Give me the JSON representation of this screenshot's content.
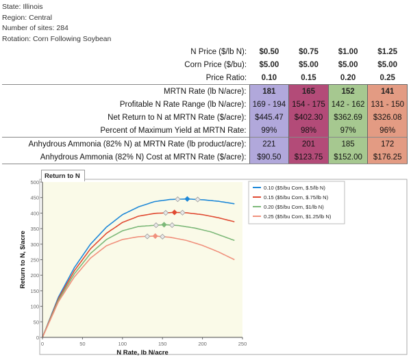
{
  "meta": {
    "state": "State: Illinois",
    "region": "Region: Central",
    "sites": "Number of sites: 284",
    "rotation": "Rotation: Corn Following Soybean"
  },
  "table": {
    "rows": [
      {
        "label": "N Price ($/lb N):",
        "values": [
          "$0.50",
          "$0.75",
          "$1.00",
          "$1.25"
        ]
      },
      {
        "label": "Corn Price ($/bu):",
        "values": [
          "$5.00",
          "$5.00",
          "$5.00",
          "$5.00"
        ]
      },
      {
        "label": "Price Ratio:",
        "values": [
          "0.10",
          "0.15",
          "0.20",
          "0.25"
        ]
      },
      {
        "label": "MRTN Rate (lb N/acre):",
        "values": [
          "181",
          "165",
          "152",
          "141"
        ]
      },
      {
        "label": "Profitable N Rate Range (lb N/acre):",
        "values": [
          "169 - 194",
          "154 - 175",
          "142 - 162",
          "131 - 150"
        ]
      },
      {
        "label": "Net Return to N at MRTN Rate ($/acre):",
        "values": [
          "$445.47",
          "$402.30",
          "$362.69",
          "$326.08"
        ]
      },
      {
        "label": "Percent of Maximum Yield at MRTN Rate:",
        "values": [
          "99%",
          "98%",
          "97%",
          "96%"
        ]
      },
      {
        "label": "Anhydrous Ammonia (82% N) at MRTN Rate (lb product/acre):",
        "values": [
          "221",
          "201",
          "185",
          "172"
        ]
      },
      {
        "label": "Anhydrous Ammonia (82% N) Cost at MRTN Rate ($/acre):",
        "values": [
          "$90.50",
          "$123.75",
          "$152.00",
          "$176.25"
        ]
      }
    ]
  },
  "chart_tab": "Return to N",
  "colors": {
    "s1": "#1e88d8",
    "s2": "#e04a32",
    "s3": "#7cb878",
    "s4": "#f0907c"
  },
  "chart_data": {
    "type": "line",
    "title": "",
    "xlabel": "N Rate, lb N/acre",
    "ylabel": "Return to N, $/acre",
    "xlim": [
      0,
      250
    ],
    "ylim": [
      0,
      500
    ],
    "xticks": [
      "0",
      "50",
      "100",
      "150",
      "200",
      "250"
    ],
    "yticks": [
      "0",
      "50",
      "100",
      "150",
      "200",
      "250",
      "300",
      "350",
      "400",
      "450",
      "500"
    ],
    "grid": false,
    "legend_position": "top-right",
    "series": [
      {
        "name": "0.10 ($5/bu Corn, $.5/lb N)",
        "color": "#1e88d8",
        "mrtn": 181,
        "max_return": 445.47,
        "range": [
          169,
          194
        ],
        "x": [
          0,
          20,
          40,
          60,
          80,
          100,
          120,
          140,
          160,
          181,
          200,
          220,
          240
        ],
        "y": [
          0,
          130,
          225,
          300,
          355,
          395,
          420,
          437,
          444,
          445.5,
          443,
          438,
          430
        ]
      },
      {
        "name": "0.15 ($5/bu Corn, $.75/lb N)",
        "color": "#e04a32",
        "mrtn": 165,
        "max_return": 402.3,
        "range": [
          154,
          175
        ],
        "x": [
          0,
          20,
          40,
          60,
          80,
          100,
          120,
          140,
          165,
          180,
          200,
          220,
          240
        ],
        "y": [
          0,
          125,
          215,
          285,
          335,
          370,
          390,
          399,
          402.3,
          401,
          395,
          385,
          372
        ]
      },
      {
        "name": "0.20 ($5/bu Corn, $1/lb N)",
        "color": "#7cb878",
        "mrtn": 152,
        "max_return": 362.69,
        "range": [
          142,
          162
        ],
        "x": [
          0,
          20,
          40,
          60,
          80,
          100,
          120,
          152,
          170,
          190,
          210,
          240
        ],
        "y": [
          0,
          120,
          205,
          270,
          315,
          343,
          357,
          362.7,
          360,
          352,
          340,
          312
        ]
      },
      {
        "name": "0.25 ($5/bu Corn, $1.25/lb N)",
        "color": "#f0907c",
        "mrtn": 141,
        "max_return": 326.08,
        "range": [
          131,
          150
        ],
        "x": [
          0,
          20,
          40,
          60,
          80,
          100,
          120,
          141,
          160,
          180,
          200,
          220,
          240
        ],
        "y": [
          0,
          115,
          195,
          255,
          295,
          315,
          324,
          326.1,
          322,
          312,
          296,
          275,
          250
        ]
      }
    ]
  }
}
